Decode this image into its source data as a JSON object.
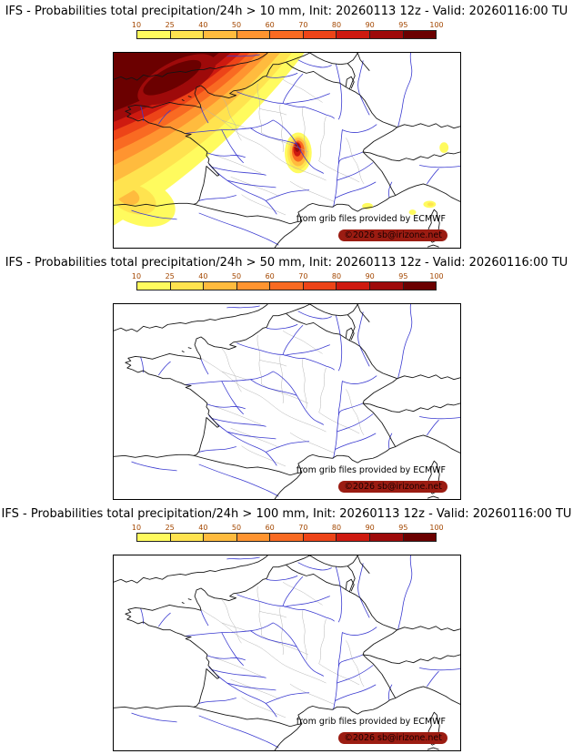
{
  "page": {
    "background": "#ffffff"
  },
  "panels": [
    {
      "title": "IFS - Probabilities total precipitation/24h > 10 mm, Init: 20260113 12z - Valid: 20260116:00 TU",
      "threshold": "> 10 mm"
    },
    {
      "title": "IFS - Probabilities total precipitation/24h > 50 mm, Init: 20260113 12z - Valid: 20260116:00 TU",
      "threshold": "> 50 mm"
    },
    {
      "title": "IFS - Probabilities total precipitation/24h > 100 mm, Init: 20260113 12z - Valid: 20260116:00 TU",
      "threshold": "> 100 mm"
    }
  ],
  "colorbar": {
    "ticks": [
      "10",
      "25",
      "40",
      "50",
      "60",
      "70",
      "80",
      "90",
      "95",
      "100"
    ],
    "colors": [
      "#fffb5e",
      "#ffe34f",
      "#ffbb3e",
      "#ff9430",
      "#f96a22",
      "#ed4418",
      "#ce1a10",
      "#9e0a0a",
      "#6b0000"
    ],
    "tick_color": "#a34700",
    "unit": "%"
  },
  "map": {
    "credit": "from grib files provided by ECMWF",
    "copyright": "©2026 sb@irizone.net",
    "river_color": "#3a3ad0",
    "border_color": "#141414",
    "department_color": "#b2b2b2",
    "copyright_bg": "#9b1c12"
  }
}
